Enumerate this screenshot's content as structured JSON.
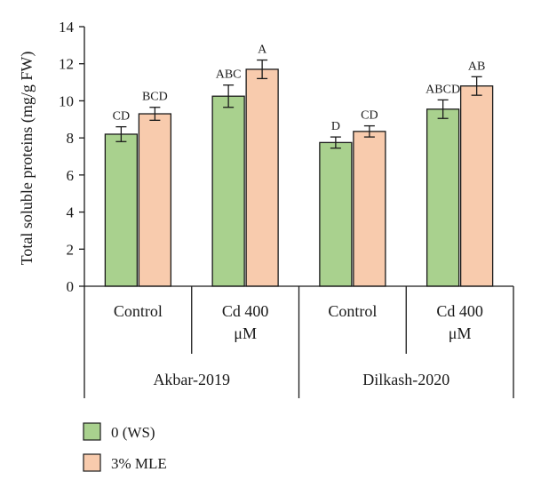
{
  "chart_data": {
    "type": "bar",
    "ylabel": "Total soluble proteins (mg/g FW)",
    "ylim": [
      0,
      14
    ],
    "yticks": [
      0,
      2,
      4,
      6,
      8,
      10,
      12,
      14
    ],
    "grid": false,
    "legend_position": "bottom-left",
    "categories": [
      {
        "lines": [
          "Control"
        ],
        "group": "Akbar-2019"
      },
      {
        "lines": [
          "Cd 400",
          "μM"
        ],
        "group": "Akbar-2019"
      },
      {
        "lines": [
          "Control"
        ],
        "group": "Dilkash-2020"
      },
      {
        "lines": [
          "Cd 400",
          "μM"
        ],
        "group": "Dilkash-2020"
      }
    ],
    "groups": [
      "Akbar-2019",
      "Dilkash-2020"
    ],
    "series": [
      {
        "name": "0 (WS)",
        "color": "#a9d18e",
        "values": [
          8.2,
          10.25,
          7.75,
          9.55
        ],
        "errors": [
          0.4,
          0.6,
          0.3,
          0.5
        ],
        "labels": [
          "CD",
          "ABC",
          "D",
          "ABCD"
        ]
      },
      {
        "name": "3% MLE",
        "color": "#f8cbad",
        "values": [
          9.3,
          11.7,
          8.35,
          10.8
        ],
        "errors": [
          0.35,
          0.5,
          0.3,
          0.5
        ],
        "labels": [
          "BCD",
          "A",
          "CD",
          "AB"
        ]
      }
    ]
  }
}
